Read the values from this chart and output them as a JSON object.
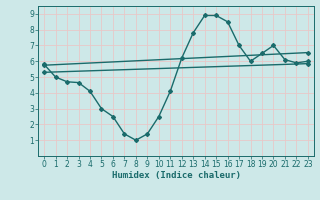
{
  "xlabel": "Humidex (Indice chaleur)",
  "xlim": [
    -0.5,
    23.5
  ],
  "ylim": [
    0,
    9.5
  ],
  "xticks": [
    0,
    1,
    2,
    3,
    4,
    5,
    6,
    7,
    8,
    9,
    10,
    11,
    12,
    13,
    14,
    15,
    16,
    17,
    18,
    19,
    20,
    21,
    22,
    23
  ],
  "yticks": [
    1,
    2,
    3,
    4,
    5,
    6,
    7,
    8,
    9
  ],
  "bg_color": "#cde8e8",
  "line_color": "#1a6b6b",
  "line1_x": [
    0,
    1,
    2,
    3,
    4,
    5,
    6,
    7,
    8,
    9,
    10,
    11,
    12,
    13,
    14,
    15,
    16,
    17,
    18,
    19,
    20,
    21,
    22,
    23
  ],
  "line1_y": [
    5.8,
    5.0,
    4.7,
    4.65,
    4.1,
    3.0,
    2.5,
    1.4,
    1.0,
    1.4,
    2.5,
    4.1,
    6.2,
    7.8,
    8.9,
    8.9,
    8.5,
    7.0,
    6.0,
    6.5,
    7.0,
    6.1,
    5.9,
    6.0
  ],
  "line2_x": [
    0,
    23
  ],
  "line2_y": [
    5.75,
    6.55
  ],
  "line3_x": [
    0,
    23
  ],
  "line3_y": [
    5.3,
    5.85
  ],
  "marker": "D",
  "markersize": 2.0,
  "linewidth": 1.0,
  "tick_fontsize": 5.5,
  "xlabel_fontsize": 6.5
}
